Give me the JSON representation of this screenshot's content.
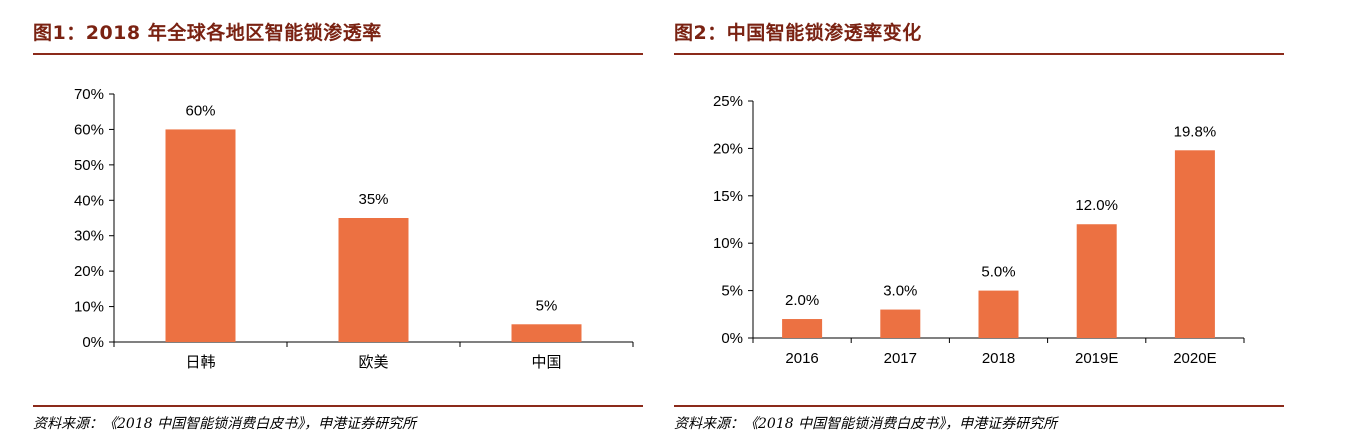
{
  "colors": {
    "bar": "#ec7142",
    "accent": "#8b2a1a",
    "title": "#7a2212"
  },
  "panels": [
    {
      "title": "图1：2018 年全球各地区智能锁渗透率",
      "source": "资料来源：《2018 中国智能锁消费白皮书》，申港证券研究所"
    },
    {
      "title": "图2：中国智能锁渗透率变化",
      "source": "资料来源：《2018 中国智能锁消费白皮书》，申港证券研究所"
    }
  ],
  "chart_data": [
    {
      "type": "bar",
      "categories": [
        "日韩",
        "欧美",
        "中国"
      ],
      "values": [
        60,
        35,
        5
      ],
      "data_labels": [
        "60%",
        "35%",
        "5%"
      ],
      "y_ticks": [
        "0%",
        "10%",
        "20%",
        "30%",
        "40%",
        "50%",
        "60%",
        "70%"
      ],
      "ylim": [
        0,
        70
      ],
      "title": "图1：2018 年全球各地区智能锁渗透率",
      "xlabel": "",
      "ylabel": "",
      "grid": false,
      "legend": "none"
    },
    {
      "type": "bar",
      "categories": [
        "2016",
        "2017",
        "2018",
        "2019E",
        "2020E"
      ],
      "values": [
        2.0,
        3.0,
        5.0,
        12.0,
        19.8
      ],
      "data_labels": [
        "2.0%",
        "3.0%",
        "5.0%",
        "12.0%",
        "19.8%"
      ],
      "y_ticks": [
        "0%",
        "5%",
        "10%",
        "15%",
        "20%",
        "25%"
      ],
      "ylim": [
        0,
        25
      ],
      "title": "图2：中国智能锁渗透率变化",
      "xlabel": "",
      "ylabel": "",
      "grid": false,
      "legend": "none"
    }
  ]
}
